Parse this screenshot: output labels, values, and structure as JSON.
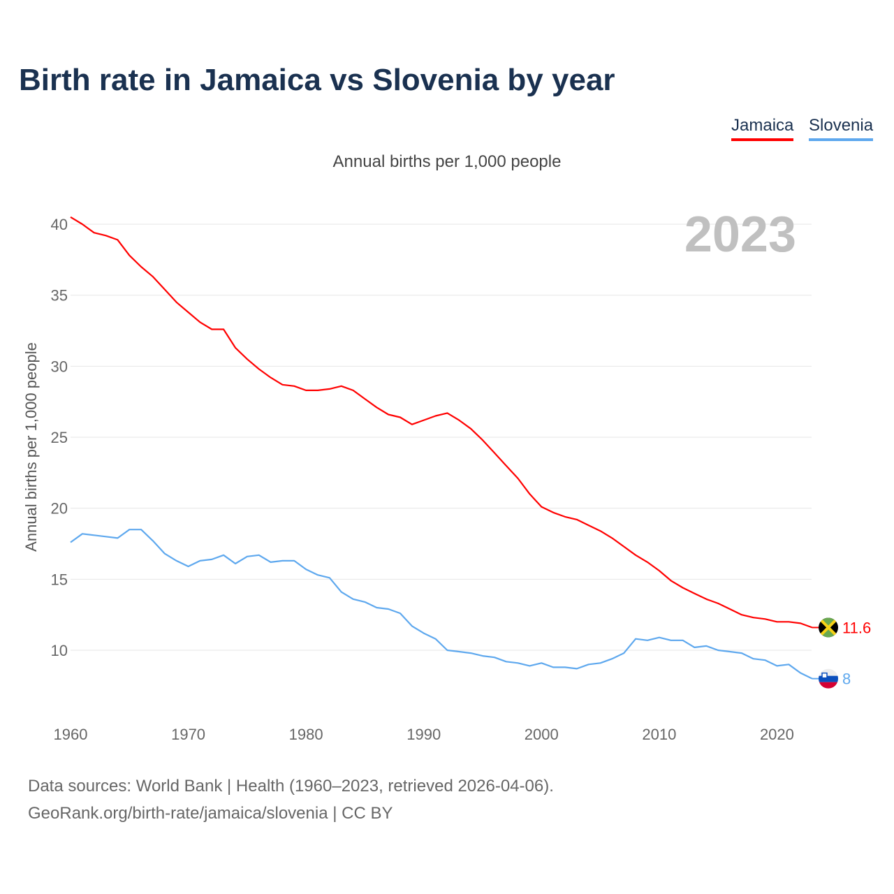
{
  "title": "Birth rate in Jamaica vs Slovenia by year",
  "subtitle": "Annual births per 1,000 people",
  "year_display": "2023",
  "footer": {
    "line1": "Data sources: World Bank | Health (1960–2023, retrieved 2026-04-06).",
    "line2": "GeoRank.org/birth-rate/jamaica/slovenia | CC BY"
  },
  "chart_data": {
    "type": "line",
    "title": "Birth rate in Jamaica vs Slovenia by year",
    "xlabel": "",
    "ylabel": "Annual births per 1,000 people",
    "xlim": [
      1960,
      2023
    ],
    "ylim": [
      6.5,
      42
    ],
    "xticks": [
      1960,
      1970,
      1980,
      1990,
      2000,
      2010,
      2020
    ],
    "yticks": [
      10,
      15,
      20,
      25,
      30,
      35,
      40
    ],
    "grid": true,
    "legend_position": "top-right",
    "x": [
      1960,
      1961,
      1962,
      1963,
      1964,
      1965,
      1966,
      1967,
      1968,
      1969,
      1970,
      1971,
      1972,
      1973,
      1974,
      1975,
      1976,
      1977,
      1978,
      1979,
      1980,
      1981,
      1982,
      1983,
      1984,
      1985,
      1986,
      1987,
      1988,
      1989,
      1990,
      1991,
      1992,
      1993,
      1994,
      1995,
      1996,
      1997,
      1998,
      1999,
      2000,
      2001,
      2002,
      2003,
      2004,
      2005,
      2006,
      2007,
      2008,
      2009,
      2010,
      2011,
      2012,
      2013,
      2014,
      2015,
      2016,
      2017,
      2018,
      2019,
      2020,
      2021,
      2022,
      2023
    ],
    "series": [
      {
        "name": "Jamaica",
        "color": "#ff0000",
        "last_label": "11.6",
        "values": [
          40.5,
          40.0,
          39.4,
          39.2,
          38.9,
          37.8,
          37.0,
          36.3,
          35.4,
          34.5,
          33.8,
          33.1,
          32.6,
          32.6,
          31.3,
          30.5,
          29.8,
          29.2,
          28.7,
          28.6,
          28.3,
          28.3,
          28.4,
          28.6,
          28.3,
          27.7,
          27.1,
          26.6,
          26.4,
          25.9,
          26.2,
          26.5,
          26.7,
          26.2,
          25.6,
          24.8,
          23.9,
          23.0,
          22.1,
          21.0,
          20.1,
          19.7,
          19.4,
          19.2,
          18.8,
          18.4,
          17.9,
          17.3,
          16.7,
          16.2,
          15.6,
          14.9,
          14.4,
          14.0,
          13.6,
          13.3,
          12.9,
          12.5,
          12.3,
          12.2,
          12.0,
          12.0,
          11.9,
          11.6
        ]
      },
      {
        "name": "Slovenia",
        "color": "#5ea8ee",
        "last_label": "8",
        "values": [
          17.6,
          18.2,
          18.1,
          18.0,
          17.9,
          18.5,
          18.5,
          17.7,
          16.8,
          16.3,
          15.9,
          16.3,
          16.4,
          16.7,
          16.1,
          16.6,
          16.7,
          16.2,
          16.3,
          16.3,
          15.7,
          15.3,
          15.1,
          14.1,
          13.6,
          13.4,
          13.0,
          12.9,
          12.6,
          11.7,
          11.2,
          10.8,
          10.0,
          9.9,
          9.8,
          9.6,
          9.5,
          9.2,
          9.1,
          8.9,
          9.1,
          8.8,
          8.8,
          8.7,
          9.0,
          9.1,
          9.4,
          9.8,
          10.8,
          10.7,
          10.9,
          10.7,
          10.7,
          10.2,
          10.3,
          10.0,
          9.9,
          9.8,
          9.4,
          9.3,
          8.9,
          9.0,
          8.4,
          8.0
        ]
      }
    ]
  }
}
